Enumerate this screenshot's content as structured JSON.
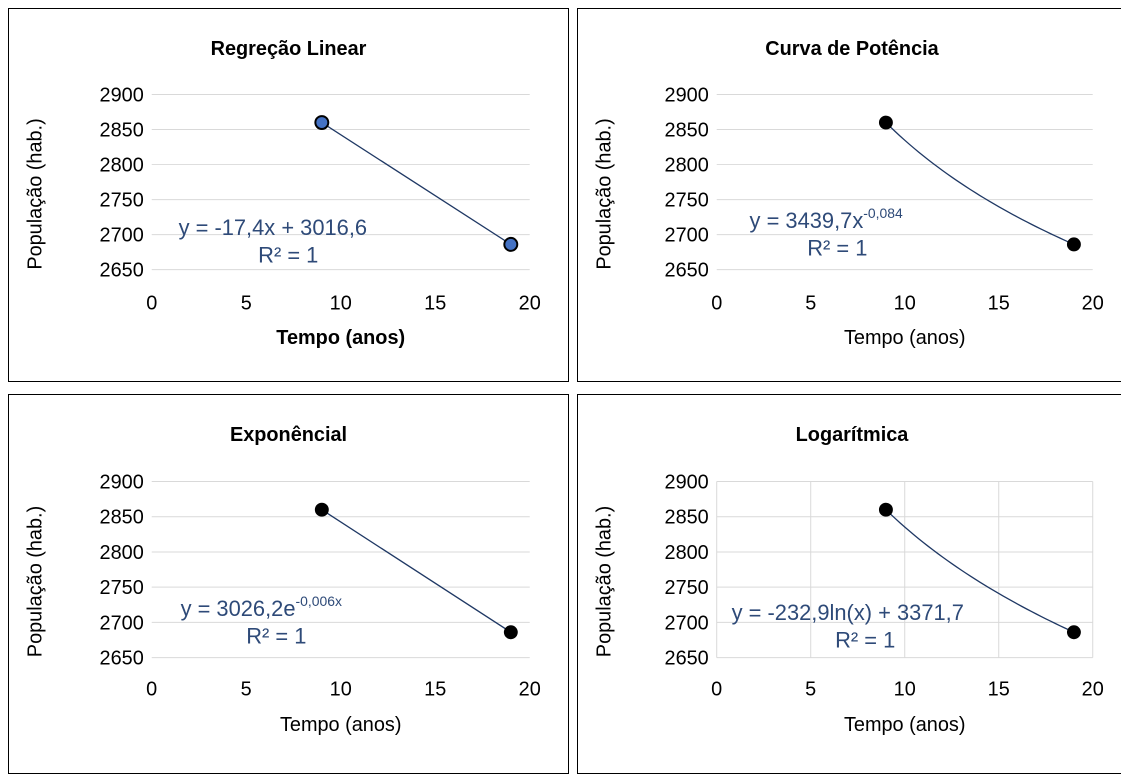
{
  "colors": {
    "line": "#1f3864",
    "grid": "#d9d9d9",
    "equation": "#2e4a78",
    "marker_blue": "#4472c4",
    "marker_black": "#000000"
  },
  "chart_data": [
    {
      "type": "scatter",
      "title": "Regreção Linear",
      "xlabel": "Tempo (anos)",
      "ylabel": "População (hab.)",
      "xlabel_bold": true,
      "xlim": [
        0,
        20
      ],
      "ylim": [
        2650,
        2900
      ],
      "xticks": [
        "0",
        "5",
        "10",
        "15",
        "20"
      ],
      "yticks": [
        "2650",
        "2700",
        "2750",
        "2800",
        "2850",
        "2900"
      ],
      "points": [
        {
          "x": 9,
          "y": 2860
        },
        {
          "x": 19,
          "y": 2686
        }
      ],
      "marker": "blue",
      "trend": "linear",
      "trendline_label": "y = -17,4x + 3016,6",
      "r2_label": "R² = 1",
      "grid": "horizontal"
    },
    {
      "type": "scatter",
      "title": "Curva de Potência",
      "xlabel": "Tempo (anos)",
      "ylabel": "População (hab.)",
      "xlabel_bold": false,
      "xlim": [
        0,
        20
      ],
      "ylim": [
        2650,
        2900
      ],
      "xticks": [
        "0",
        "5",
        "10",
        "15",
        "20"
      ],
      "yticks": [
        "2650",
        "2700",
        "2750",
        "2800",
        "2850",
        "2900"
      ],
      "points": [
        {
          "x": 9,
          "y": 2860
        },
        {
          "x": 19,
          "y": 2686
        }
      ],
      "marker": "black",
      "trend": "power",
      "trendline_label": "y = 3439,7x",
      "trendline_exponent": "-0,084",
      "r2_label": "R² = 1",
      "grid": "horizontal"
    },
    {
      "type": "scatter",
      "title": "Exponêncial",
      "xlabel": "Tempo (anos)",
      "ylabel": "População (hab.)",
      "xlabel_bold": false,
      "xlim": [
        0,
        20
      ],
      "ylim": [
        2650,
        2900
      ],
      "xticks": [
        "0",
        "5",
        "10",
        "15",
        "20"
      ],
      "yticks": [
        "2650",
        "2700",
        "2750",
        "2800",
        "2850",
        "2900"
      ],
      "points": [
        {
          "x": 9,
          "y": 2860
        },
        {
          "x": 19,
          "y": 2686
        }
      ],
      "marker": "black",
      "trend": "exponential",
      "trendline_label": "y = 3026,2e",
      "trendline_exponent": "-0,006x",
      "r2_label": "R² = 1",
      "grid": "horizontal"
    },
    {
      "type": "scatter",
      "title": "Logarítmica",
      "xlabel": "Tempo (anos)",
      "ylabel": "População (hab.)",
      "xlabel_bold": false,
      "xlim": [
        0,
        20
      ],
      "ylim": [
        2650,
        2900
      ],
      "xticks": [
        "0",
        "5",
        "10",
        "15",
        "20"
      ],
      "yticks": [
        "2650",
        "2700",
        "2750",
        "2800",
        "2850",
        "2900"
      ],
      "points": [
        {
          "x": 9,
          "y": 2860
        },
        {
          "x": 19,
          "y": 2686
        }
      ],
      "marker": "black",
      "trend": "logarithmic",
      "trendline_label": "y = -232,9ln(x) + 3371,7",
      "r2_label": "R² = 1",
      "grid": "both"
    }
  ]
}
